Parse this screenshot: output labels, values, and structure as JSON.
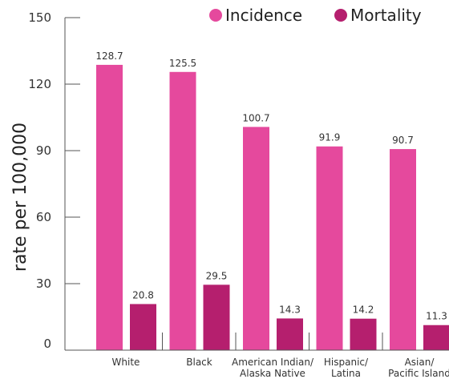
{
  "chart_data": {
    "type": "bar",
    "categories": [
      [
        "White"
      ],
      [
        "Black"
      ],
      [
        "American Indian/",
        "Alaska Native"
      ],
      [
        "Hispanic/",
        "Latina"
      ],
      [
        "Asian/",
        "Pacific Island"
      ]
    ],
    "series": [
      {
        "name": "Incidence",
        "color": "#e5499d",
        "values": [
          128.7,
          125.5,
          100.7,
          91.9,
          90.7
        ],
        "labels": [
          "128.7",
          "125.5",
          "100.7",
          "91.9",
          "90.7"
        ]
      },
      {
        "name": "Mortality",
        "color": "#b51f6e",
        "values": [
          20.8,
          29.5,
          14.3,
          14.2,
          11.3
        ],
        "labels": [
          "20.8",
          "29.5",
          "14.3",
          "14.2",
          "11.3"
        ]
      }
    ],
    "ylabel": "rate per 100,000",
    "ylim": [
      0,
      150
    ],
    "yticks": [
      "0",
      "30",
      "60",
      "90",
      "120",
      "150"
    ],
    "legend": "top-right",
    "grid": false
  }
}
